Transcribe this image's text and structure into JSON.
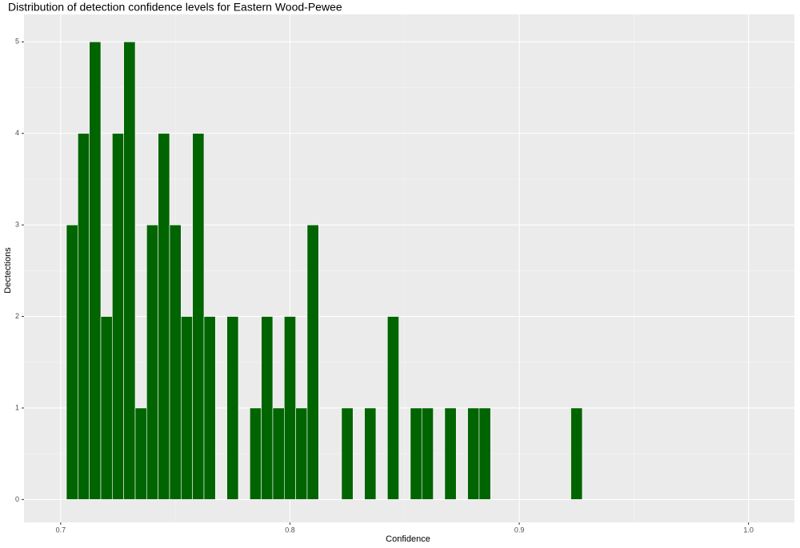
{
  "chart_data": {
    "type": "histogram",
    "title": "Distribution of detection confidence levels for Eastern Wood-Pewee",
    "x_label": "Confidence",
    "y_label": "Dectections",
    "bins": [
      0.7025,
      0.7075,
      0.7125,
      0.7175,
      0.7225,
      0.7275,
      0.7325,
      0.7375,
      0.7425,
      0.7475,
      0.7525,
      0.7575,
      0.7625,
      0.7675,
      0.7725,
      0.7775,
      0.7825,
      0.7875,
      0.7925,
      0.7975,
      0.8025,
      0.8075,
      0.8125,
      0.8175,
      0.8225,
      0.8275,
      0.8325,
      0.8375,
      0.8425,
      0.8475,
      0.8525,
      0.8575,
      0.8625,
      0.8675,
      0.8725,
      0.8775,
      0.8825,
      0.8875,
      0.8925,
      0.8975,
      0.9025,
      0.9075,
      0.9125,
      0.9175,
      0.9225,
      0.9275
    ],
    "values": [
      3,
      4,
      5,
      2,
      4,
      5,
      1,
      3,
      4,
      3,
      2,
      4,
      2,
      0,
      2,
      0,
      1,
      2,
      1,
      2,
      1,
      3,
      0,
      0,
      1,
      0,
      1,
      0,
      2,
      0,
      1,
      1,
      0,
      1,
      0,
      1,
      1,
      0,
      0,
      0,
      0,
      0,
      0,
      0,
      1
    ],
    "color": "#006400",
    "xlim": [
      0.684,
      1.02
    ],
    "xticks": [
      0.7,
      0.8,
      0.9,
      {
        "value": 1,
        "label": "1.0"
      }
    ],
    "ylim": [
      -0.25,
      5.3
    ],
    "yticks": [
      0,
      1,
      2,
      3,
      4,
      5
    ],
    "grid": true
  }
}
